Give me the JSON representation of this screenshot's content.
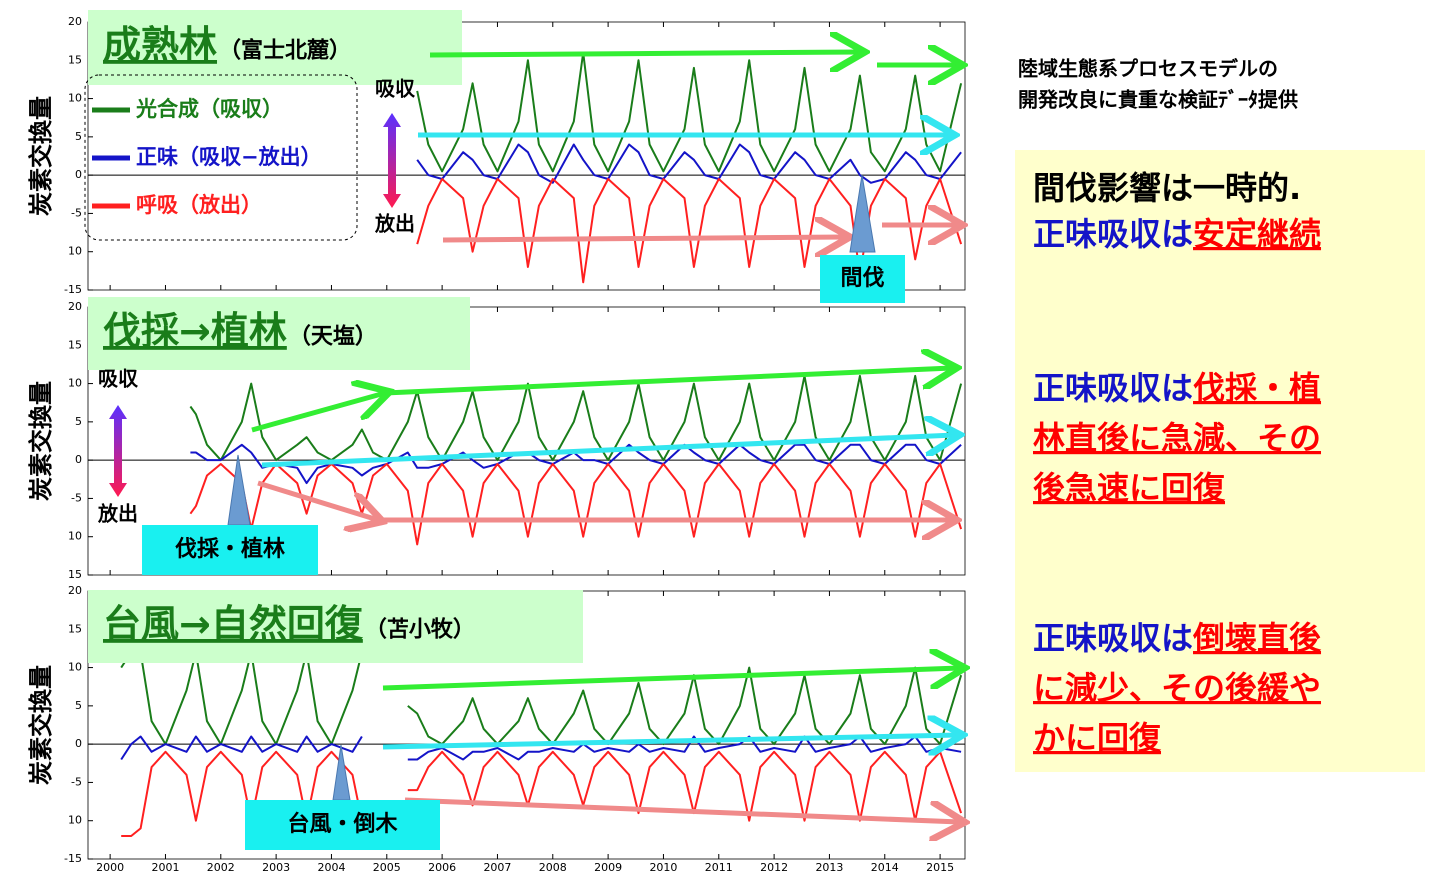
{
  "chart_data": [
    {
      "type": "line",
      "title": "成熟林",
      "subtitle": "（富士北麓）",
      "ylabel": "炭素交換量",
      "xlim": [
        1999.6,
        2015.45
      ],
      "ylim": [
        -15,
        20
      ],
      "yticks": [
        20,
        15,
        10,
        5,
        0,
        -5,
        {
          "value": -10,
          "label": "10"
        },
        -15
      ],
      "legend": "upper left",
      "annotations": [
        "吸収",
        "放出",
        "間伐"
      ],
      "x": [
        2005.55,
        2005.75,
        2006,
        2006.38,
        2006.55,
        2006.75,
        2007,
        2007.38,
        2007.55,
        2007.75,
        2008,
        2008.38,
        2008.55,
        2008.75,
        2009,
        2009.38,
        2009.55,
        2009.75,
        2010,
        2010.38,
        2010.55,
        2010.75,
        2011,
        2011.38,
        2011.55,
        2011.75,
        2012,
        2012.38,
        2012.55,
        2012.75,
        2013,
        2013.38,
        2013.55,
        2013.75,
        2014,
        2014.38,
        2014.55,
        2014.75,
        2015,
        2015.38
      ],
      "series": [
        {
          "name": "光合成（吸収）",
          "color": "#1a7d1a",
          "values": [
            11,
            4,
            0.5,
            6,
            12,
            4,
            0.5,
            7,
            15,
            4,
            0.5,
            7,
            16,
            4,
            0.5,
            7,
            15,
            4,
            0.5,
            6,
            14,
            4,
            0.5,
            7,
            15,
            4,
            0.5,
            6,
            14,
            4,
            0.5,
            6,
            13,
            3,
            0.5,
            6,
            13,
            4,
            0.5,
            12
          ]
        },
        {
          "name": "正味（吸収−放出）",
          "color": "#1414c8",
          "values": [
            2,
            0,
            -0.5,
            3,
            2,
            0,
            -0.5,
            4,
            3,
            0,
            -1,
            4,
            2,
            0,
            -0.5,
            4,
            3,
            0,
            -0.5,
            3,
            2,
            0,
            -0.5,
            4,
            3,
            0,
            -0.5,
            3,
            2,
            0,
            -0.5,
            2,
            0,
            -1,
            -0.5,
            3,
            2,
            0,
            -0.5,
            3
          ]
        },
        {
          "name": "呼吸（放出）",
          "color": "#ff2020",
          "values": [
            -9,
            -4,
            -0.5,
            -3,
            -10,
            -4,
            -0.5,
            -3,
            -12,
            -4,
            -0.5,
            -3,
            -14,
            -4,
            -0.5,
            -3,
            -12,
            -4,
            -0.5,
            -3,
            -12,
            -4,
            -0.5,
            -3,
            -12,
            -4,
            -0.5,
            -3,
            -12,
            -4,
            -0.5,
            -4,
            -13,
            -4,
            -0.5,
            -3,
            -11,
            -4,
            -0.5,
            -9
          ]
        }
      ]
    },
    {
      "type": "line",
      "title": "伐採→植林",
      "subtitle": "（天塩）",
      "ylabel": "炭素交換量",
      "xlim": [
        1999.6,
        2015.45
      ],
      "ylim": [
        -15,
        20
      ],
      "yticks": [
        20,
        15,
        10,
        5,
        0,
        -5,
        {
          "value": -10,
          "label": "10"
        },
        {
          "value": -15,
          "label": "15"
        }
      ],
      "annotations": [
        "吸収",
        "放出",
        "伐採・植林"
      ],
      "x": [
        2001.45,
        2001.55,
        2001.75,
        2002,
        2002.38,
        2002.55,
        2002.75,
        2003,
        2003.38,
        2003.55,
        2003.75,
        2004,
        2004.38,
        2004.55,
        2004.75,
        2005,
        2005.38,
        2005.55,
        2005.75,
        2006,
        2006.38,
        2006.55,
        2006.75,
        2007,
        2007.38,
        2007.55,
        2007.75,
        2008,
        2008.38,
        2008.55,
        2008.75,
        2009,
        2009.38,
        2009.55,
        2009.75,
        2010,
        2010.38,
        2010.55,
        2010.75,
        2011,
        2011.38,
        2011.55,
        2011.75,
        2012,
        2012.38,
        2012.55,
        2012.75,
        2013,
        2013.38,
        2013.55,
        2013.75,
        2014,
        2014.38,
        2014.55,
        2014.75,
        2015,
        2015.38
      ],
      "series": [
        {
          "color": "#1a7d1a",
          "values": [
            7,
            6,
            2,
            0,
            5,
            10,
            3,
            0,
            2,
            3,
            1,
            0,
            2,
            4,
            1,
            0,
            5,
            9,
            3,
            0,
            5,
            9,
            3,
            0,
            5,
            10,
            3,
            0,
            5,
            9,
            3,
            0,
            5,
            10,
            3,
            0,
            5,
            10,
            3,
            0,
            5,
            10,
            3,
            0,
            5,
            11,
            3,
            0,
            5,
            11,
            3,
            0,
            5,
            11,
            3,
            0,
            10
          ]
        },
        {
          "color": "#1414c8",
          "values": [
            1,
            1,
            0,
            0,
            2,
            1,
            -1,
            -0.5,
            -1,
            -3,
            -1,
            -0.5,
            -1,
            -2,
            -1,
            -0.5,
            1,
            -1,
            -1,
            -0.5,
            1,
            0,
            -1,
            -0.5,
            1,
            1,
            0,
            -0.5,
            1,
            0,
            0,
            -0.5,
            2,
            1,
            0,
            -0.5,
            2,
            1,
            0,
            -0.5,
            2,
            1,
            0,
            -0.5,
            2,
            2,
            0,
            -0.5,
            2,
            2,
            0,
            -0.5,
            2,
            2,
            0,
            -0.5,
            2
          ]
        },
        {
          "color": "#ff2020",
          "values": [
            -7,
            -6,
            -2,
            -0.5,
            -3,
            -9,
            -3,
            -0.5,
            -3,
            -7,
            -2,
            -0.5,
            -3,
            -7,
            -2,
            -0.5,
            -4,
            -11,
            -3,
            -0.5,
            -4,
            -10,
            -3,
            -0.5,
            -4,
            -10,
            -3,
            -0.5,
            -4,
            -10,
            -3,
            -0.5,
            -4,
            -10,
            -3,
            -0.5,
            -4,
            -10,
            -3,
            -0.5,
            -4,
            -10,
            -3,
            -0.5,
            -4,
            -10,
            -3,
            -0.5,
            -4,
            -10,
            -3,
            -0.5,
            -4,
            -10,
            -3,
            -0.5,
            -9
          ]
        }
      ]
    },
    {
      "type": "line",
      "title": "台風→自然回復",
      "subtitle": "（苫小牧）",
      "ylabel": "炭素交換量",
      "xlim": [
        1999.6,
        2015.45
      ],
      "ylim": [
        -15,
        20
      ],
      "yticks": [
        20,
        15,
        10,
        5,
        0,
        -5,
        {
          "value": -10,
          "label": "10"
        },
        -15
      ],
      "xticks": [
        2000,
        2001,
        2002,
        2003,
        2004,
        2005,
        2006,
        2007,
        2008,
        2009,
        2010,
        2011,
        2012,
        2013,
        2014,
        2015
      ],
      "annotations": [
        "台風・倒木"
      ],
      "x": [
        2000.2,
        2000.38,
        2000.55,
        2000.75,
        2001,
        2001.38,
        2001.55,
        2001.75,
        2002,
        2002.38,
        2002.55,
        2002.75,
        2003,
        2003.38,
        2003.55,
        2003.75,
        2004,
        2004.38,
        2004.55,
        2004.75,
        2005.38,
        2005.55,
        2005.75,
        2006,
        2006.38,
        2006.55,
        2006.75,
        2007,
        2007.38,
        2007.55,
        2007.75,
        2008,
        2008.38,
        2008.55,
        2008.75,
        2009,
        2009.38,
        2009.55,
        2009.75,
        2010,
        2010.38,
        2010.55,
        2010.75,
        2011,
        2011.38,
        2011.55,
        2011.75,
        2012,
        2012.38,
        2012.55,
        2012.75,
        2013,
        2013.38,
        2013.55,
        2013.75,
        2014,
        2014.38,
        2014.55,
        2014.75,
        2015,
        2015.38
      ],
      "series": [
        {
          "color": "#1a7d1a",
          "values": [
            10,
            12,
            12,
            3,
            0,
            7,
            12,
            3,
            0,
            7,
            12,
            3,
            0,
            7,
            12,
            3,
            0,
            7,
            12,
            null,
            5,
            4,
            1,
            0,
            3,
            6,
            2,
            0,
            3,
            6,
            2,
            0,
            4,
            7,
            2,
            0,
            4,
            8,
            2,
            0,
            4,
            9,
            2,
            0,
            5,
            10,
            2,
            0,
            4,
            9,
            2,
            0,
            4,
            9,
            2,
            0,
            5,
            10,
            2,
            0,
            9
          ]
        },
        {
          "color": "#1414c8",
          "values": [
            -2,
            0,
            1,
            -1,
            0,
            -1,
            1,
            -1,
            0,
            -1,
            1,
            -1,
            0,
            -1,
            1,
            -1,
            0,
            -1,
            1,
            null,
            -2,
            -2,
            -1,
            -0.5,
            -2,
            -1,
            -1,
            -0.5,
            -2,
            -1,
            -1,
            -0.5,
            -1,
            0,
            -1,
            -0.5,
            -1,
            0,
            -1,
            -0.5,
            -1,
            1,
            -1,
            -0.5,
            0,
            1,
            -1,
            -0.5,
            -1,
            1,
            -1,
            -0.5,
            0,
            1,
            -1,
            -0.5,
            0,
            1,
            -1,
            -0.5,
            -1
          ]
        },
        {
          "color": "#ff2020",
          "values": [
            -12,
            -12,
            -11,
            -3,
            -1,
            -4,
            -10,
            -3,
            -1,
            -4,
            -10,
            -3,
            -1,
            -4,
            -10,
            -3,
            -1,
            -4,
            -10,
            null,
            -6,
            -6,
            -3,
            -1,
            -4,
            -8,
            -3,
            -1,
            -4,
            -8,
            -3,
            -1,
            -4,
            -8,
            -3,
            -1,
            -4,
            -9,
            -3,
            -1,
            -4,
            -9,
            -3,
            -1,
            -4,
            -10,
            -3,
            -1,
            -4,
            -10,
            -3,
            -1,
            -4,
            -10,
            -3,
            -1,
            -4,
            -10,
            -3,
            -1,
            -9
          ]
        }
      ]
    }
  ],
  "side": {
    "caption": [
      "陸域生態系プロセスモデルの",
      "開発改良に貴重な検証ﾃﾞｰﾀ提供"
    ],
    "blocks": [
      [
        [
          {
            "text": "間伐影響は一時的.",
            "color": "#000000"
          }
        ],
        [
          {
            "text": "正味吸収は",
            "color": "#1414c8"
          },
          {
            "text": "安定継続",
            "color": "#ff0000",
            "underline": true
          }
        ]
      ],
      [
        [
          {
            "text": "正味吸収は",
            "color": "#1414c8"
          },
          {
            "text": "伐採・植",
            "color": "#ff0000",
            "underline": true
          }
        ],
        [
          {
            "text": "林直後に急減、その",
            "color": "#ff0000",
            "underline": true
          }
        ],
        [
          {
            "text": "後急速に回復",
            "color": "#ff0000",
            "underline": true
          }
        ]
      ],
      [
        [
          {
            "text": "正味吸収は",
            "color": "#1414c8"
          },
          {
            "text": "倒壊直後",
            "color": "#ff0000",
            "underline": true
          }
        ],
        [
          {
            "text": "に減少、その後緩や",
            "color": "#ff0000",
            "underline": true
          }
        ],
        [
          {
            "text": "かに回復",
            "color": "#ff0000",
            "underline": true
          }
        ]
      ]
    ]
  }
}
